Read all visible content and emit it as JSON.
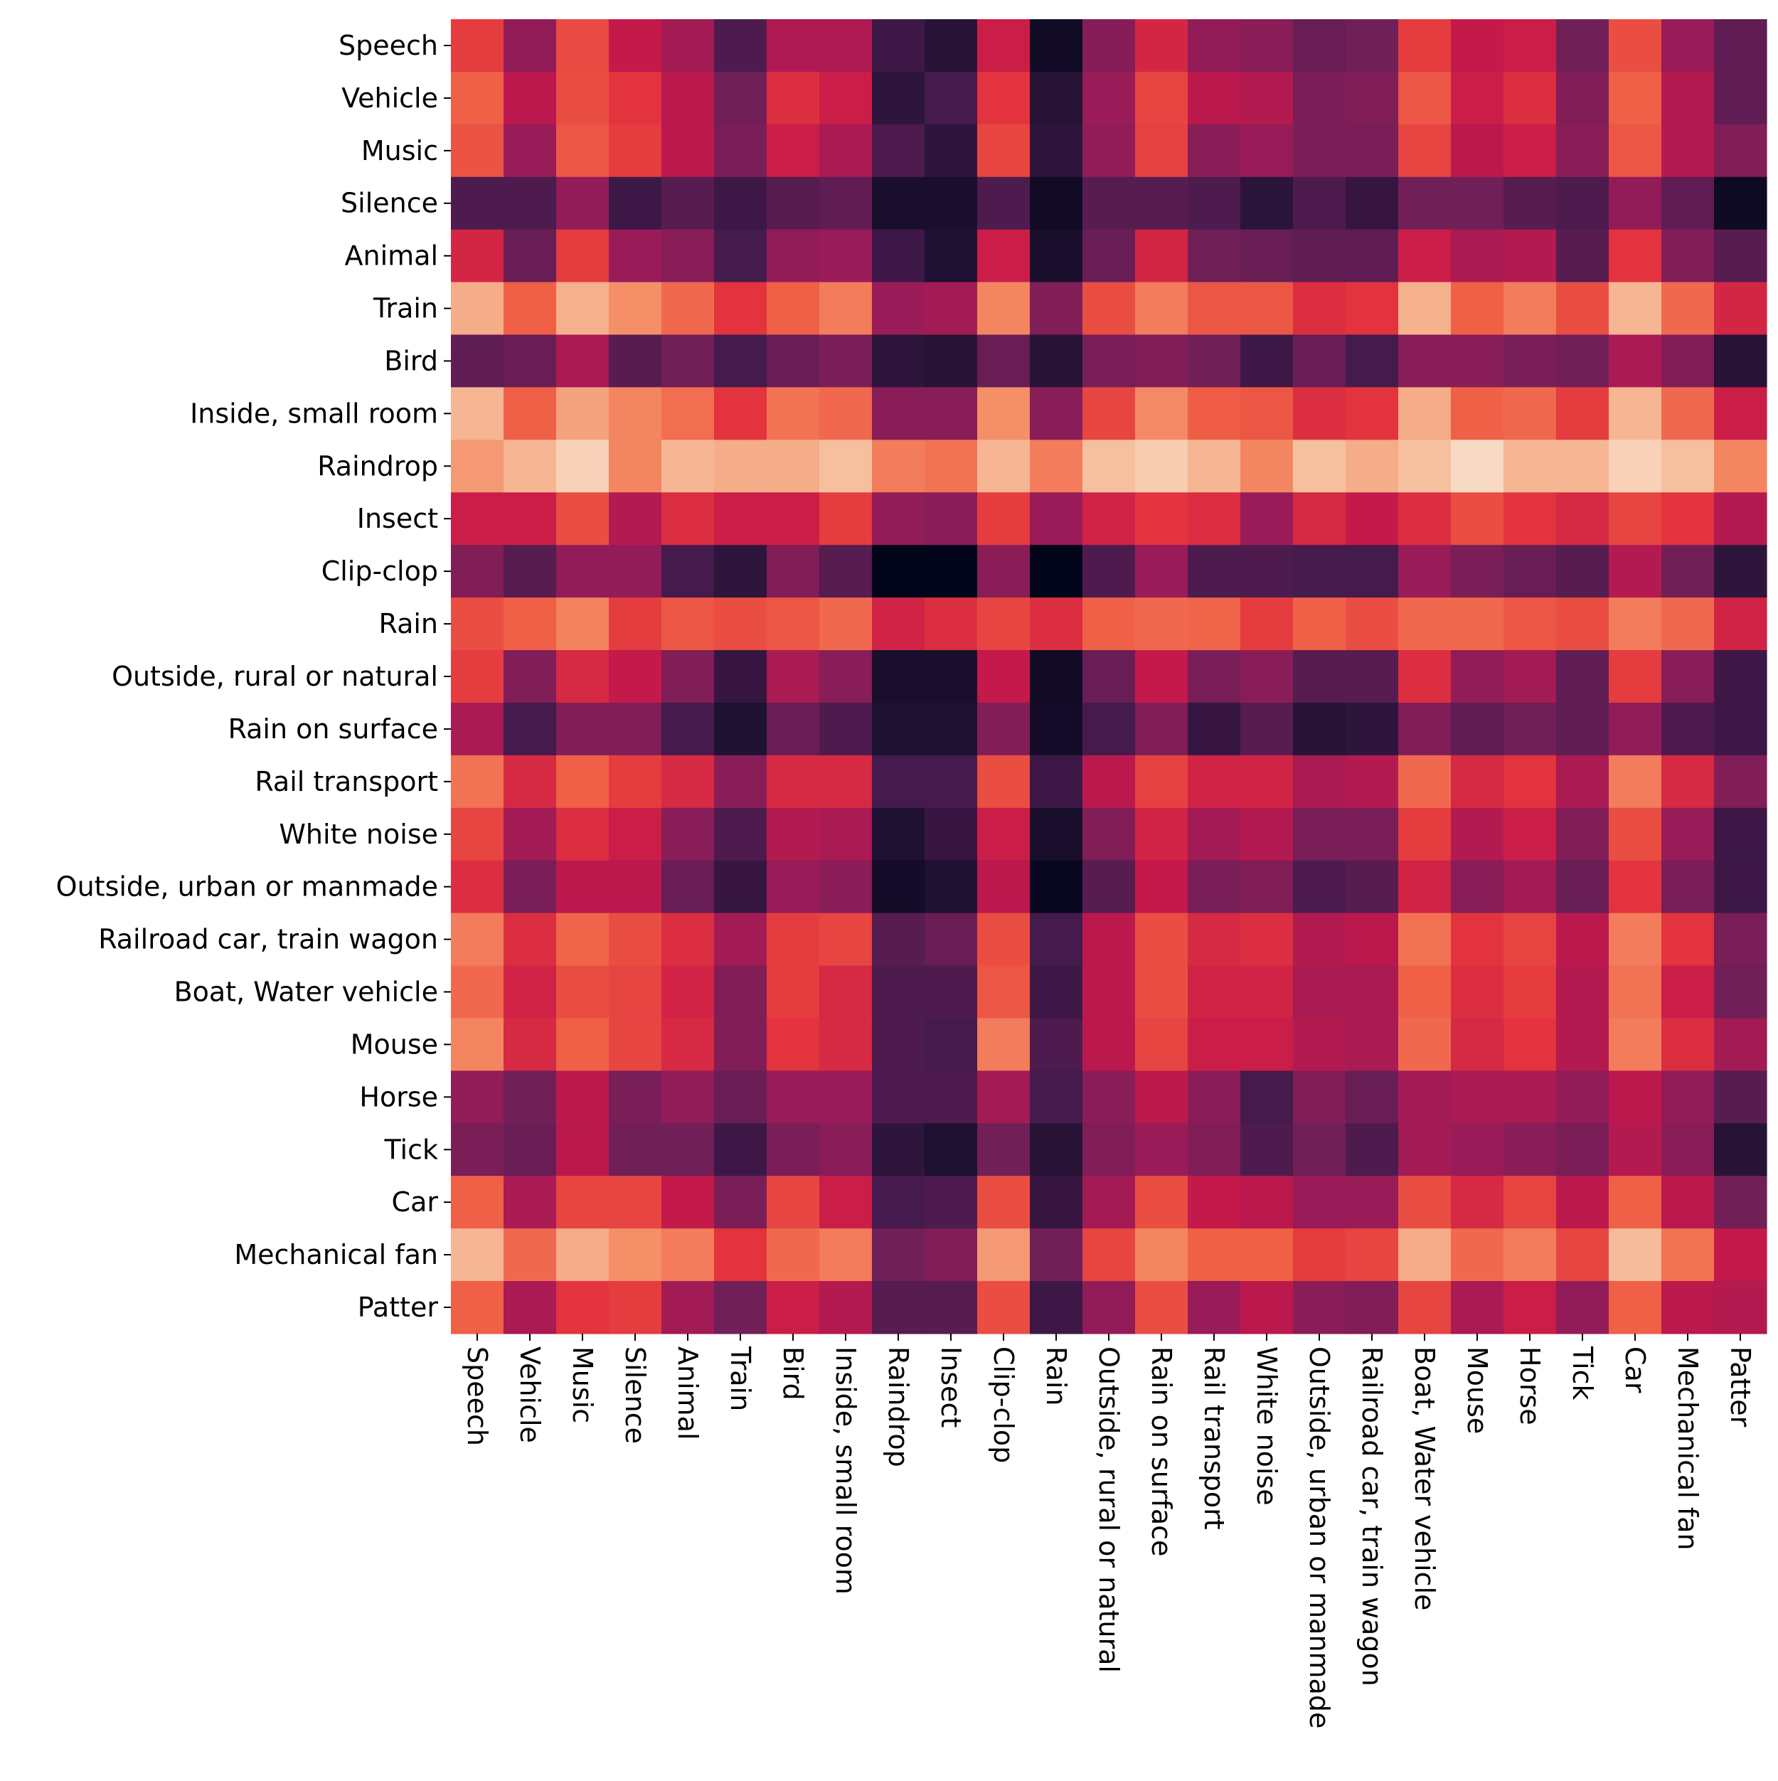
{
  "chart_data": {
    "type": "heatmap",
    "title": "",
    "xlabel": "",
    "ylabel": "",
    "colorbar": false,
    "grid": false,
    "colormap": "rocket",
    "value_range": [
      0,
      1
    ],
    "x_labels": [
      "Speech",
      "Vehicle",
      "Music",
      "Silence",
      "Animal",
      "Train",
      "Bird",
      "Inside, small room",
      "Raindrop",
      "Insect",
      "Clip-clop",
      "Rain",
      "Outside, rural or natural",
      "Rain on surface",
      "Rail transport",
      "White noise",
      "Outside, urban or manmade",
      "Railroad car, train wagon",
      "Boat, Water vehicle",
      "Mouse",
      "Horse",
      "Tick",
      "Car",
      "Mechanical fan",
      "Patter"
    ],
    "y_labels": [
      "Speech",
      "Vehicle",
      "Music",
      "Silence",
      "Animal",
      "Train",
      "Bird",
      "Inside, small room",
      "Raindrop",
      "Insect",
      "Clip-clop",
      "Rain",
      "Outside, rural or natural",
      "Rain on surface",
      "Rail transport",
      "White noise",
      "Outside, urban or manmade",
      "Railroad car, train wagon",
      "Boat, Water vehicle",
      "Mouse",
      "Horse",
      "Tick",
      "Car",
      "Mechanical fan",
      "Patter"
    ],
    "values": [
      [
        0.62,
        0.38,
        0.65,
        0.5,
        0.42,
        0.22,
        0.45,
        0.45,
        0.18,
        0.12,
        0.52,
        0.05,
        0.35,
        0.55,
        0.38,
        0.36,
        0.28,
        0.3,
        0.62,
        0.5,
        0.52,
        0.3,
        0.66,
        0.4,
        0.26
      ],
      [
        0.7,
        0.48,
        0.66,
        0.6,
        0.48,
        0.3,
        0.58,
        0.52,
        0.14,
        0.2,
        0.6,
        0.12,
        0.4,
        0.64,
        0.48,
        0.46,
        0.32,
        0.34,
        0.68,
        0.52,
        0.58,
        0.34,
        0.7,
        0.46,
        0.26
      ],
      [
        0.67,
        0.4,
        0.68,
        0.62,
        0.48,
        0.32,
        0.52,
        0.44,
        0.22,
        0.14,
        0.64,
        0.14,
        0.38,
        0.63,
        0.36,
        0.4,
        0.32,
        0.32,
        0.64,
        0.48,
        0.52,
        0.36,
        0.68,
        0.46,
        0.34
      ],
      [
        0.22,
        0.22,
        0.38,
        0.18,
        0.24,
        0.18,
        0.24,
        0.26,
        0.08,
        0.08,
        0.22,
        0.05,
        0.24,
        0.24,
        0.22,
        0.13,
        0.22,
        0.16,
        0.3,
        0.3,
        0.24,
        0.22,
        0.38,
        0.26,
        0.04
      ],
      [
        0.55,
        0.28,
        0.62,
        0.4,
        0.36,
        0.2,
        0.38,
        0.4,
        0.18,
        0.1,
        0.52,
        0.08,
        0.28,
        0.55,
        0.3,
        0.28,
        0.26,
        0.26,
        0.52,
        0.44,
        0.46,
        0.24,
        0.6,
        0.34,
        0.24
      ],
      [
        0.86,
        0.7,
        0.87,
        0.8,
        0.72,
        0.6,
        0.7,
        0.76,
        0.4,
        0.42,
        0.78,
        0.34,
        0.66,
        0.76,
        0.68,
        0.68,
        0.58,
        0.6,
        0.87,
        0.7,
        0.76,
        0.66,
        0.88,
        0.72,
        0.55
      ],
      [
        0.26,
        0.28,
        0.44,
        0.24,
        0.3,
        0.2,
        0.28,
        0.32,
        0.14,
        0.12,
        0.28,
        0.12,
        0.32,
        0.34,
        0.3,
        0.18,
        0.28,
        0.2,
        0.36,
        0.36,
        0.32,
        0.3,
        0.44,
        0.34,
        0.12
      ],
      [
        0.88,
        0.7,
        0.84,
        0.78,
        0.73,
        0.6,
        0.74,
        0.72,
        0.36,
        0.36,
        0.8,
        0.36,
        0.64,
        0.79,
        0.69,
        0.68,
        0.58,
        0.6,
        0.86,
        0.7,
        0.72,
        0.62,
        0.88,
        0.72,
        0.52
      ],
      [
        0.82,
        0.88,
        0.94,
        0.78,
        0.88,
        0.86,
        0.86,
        0.9,
        0.76,
        0.74,
        0.88,
        0.76,
        0.9,
        0.93,
        0.88,
        0.78,
        0.9,
        0.86,
        0.9,
        0.96,
        0.88,
        0.88,
        0.94,
        0.9,
        0.78
      ],
      [
        0.52,
        0.52,
        0.66,
        0.46,
        0.58,
        0.52,
        0.52,
        0.62,
        0.38,
        0.36,
        0.62,
        0.4,
        0.54,
        0.6,
        0.58,
        0.4,
        0.56,
        0.5,
        0.58,
        0.66,
        0.6,
        0.56,
        0.64,
        0.6,
        0.46
      ],
      [
        0.34,
        0.24,
        0.38,
        0.38,
        0.2,
        0.14,
        0.34,
        0.24,
        0.0,
        0.0,
        0.36,
        0.0,
        0.22,
        0.4,
        0.22,
        0.22,
        0.2,
        0.2,
        0.4,
        0.32,
        0.28,
        0.24,
        0.46,
        0.3,
        0.14
      ],
      [
        0.66,
        0.7,
        0.77,
        0.62,
        0.68,
        0.66,
        0.68,
        0.72,
        0.54,
        0.58,
        0.64,
        0.58,
        0.7,
        0.72,
        0.71,
        0.62,
        0.7,
        0.66,
        0.72,
        0.72,
        0.68,
        0.66,
        0.76,
        0.72,
        0.54
      ],
      [
        0.62,
        0.34,
        0.56,
        0.5,
        0.34,
        0.16,
        0.44,
        0.36,
        0.08,
        0.08,
        0.5,
        0.05,
        0.28,
        0.5,
        0.32,
        0.36,
        0.24,
        0.24,
        0.58,
        0.38,
        0.42,
        0.26,
        0.62,
        0.36,
        0.18
      ],
      [
        0.44,
        0.2,
        0.34,
        0.34,
        0.2,
        0.1,
        0.28,
        0.22,
        0.1,
        0.1,
        0.34,
        0.06,
        0.2,
        0.34,
        0.16,
        0.24,
        0.12,
        0.14,
        0.34,
        0.26,
        0.3,
        0.26,
        0.38,
        0.22,
        0.18
      ],
      [
        0.74,
        0.56,
        0.7,
        0.62,
        0.56,
        0.36,
        0.56,
        0.56,
        0.2,
        0.2,
        0.66,
        0.18,
        0.48,
        0.63,
        0.54,
        0.54,
        0.44,
        0.46,
        0.72,
        0.56,
        0.6,
        0.44,
        0.76,
        0.56,
        0.34
      ],
      [
        0.64,
        0.42,
        0.58,
        0.52,
        0.36,
        0.22,
        0.46,
        0.44,
        0.1,
        0.16,
        0.52,
        0.08,
        0.34,
        0.54,
        0.42,
        0.46,
        0.32,
        0.32,
        0.62,
        0.46,
        0.52,
        0.34,
        0.66,
        0.4,
        0.18
      ],
      [
        0.58,
        0.32,
        0.48,
        0.48,
        0.28,
        0.16,
        0.4,
        0.36,
        0.06,
        0.1,
        0.48,
        0.02,
        0.24,
        0.5,
        0.32,
        0.34,
        0.22,
        0.24,
        0.54,
        0.36,
        0.42,
        0.28,
        0.6,
        0.32,
        0.18
      ],
      [
        0.76,
        0.58,
        0.71,
        0.66,
        0.58,
        0.42,
        0.62,
        0.64,
        0.24,
        0.28,
        0.66,
        0.2,
        0.48,
        0.66,
        0.56,
        0.58,
        0.46,
        0.48,
        0.74,
        0.6,
        0.64,
        0.48,
        0.76,
        0.6,
        0.32
      ],
      [
        0.72,
        0.54,
        0.66,
        0.64,
        0.54,
        0.34,
        0.62,
        0.56,
        0.22,
        0.22,
        0.68,
        0.18,
        0.48,
        0.66,
        0.54,
        0.54,
        0.44,
        0.44,
        0.7,
        0.58,
        0.62,
        0.46,
        0.74,
        0.52,
        0.3
      ],
      [
        0.78,
        0.56,
        0.7,
        0.64,
        0.56,
        0.34,
        0.6,
        0.56,
        0.22,
        0.2,
        0.76,
        0.22,
        0.48,
        0.64,
        0.52,
        0.52,
        0.46,
        0.44,
        0.72,
        0.56,
        0.6,
        0.46,
        0.76,
        0.58,
        0.42
      ],
      [
        0.38,
        0.3,
        0.48,
        0.32,
        0.38,
        0.28,
        0.4,
        0.4,
        0.22,
        0.22,
        0.42,
        0.2,
        0.36,
        0.48,
        0.36,
        0.2,
        0.34,
        0.28,
        0.42,
        0.44,
        0.44,
        0.38,
        0.48,
        0.38,
        0.24
      ],
      [
        0.32,
        0.28,
        0.48,
        0.3,
        0.3,
        0.18,
        0.32,
        0.36,
        0.14,
        0.1,
        0.3,
        0.12,
        0.34,
        0.4,
        0.34,
        0.22,
        0.3,
        0.22,
        0.42,
        0.4,
        0.36,
        0.32,
        0.46,
        0.36,
        0.12
      ],
      [
        0.7,
        0.44,
        0.64,
        0.64,
        0.5,
        0.32,
        0.64,
        0.52,
        0.2,
        0.22,
        0.66,
        0.16,
        0.42,
        0.66,
        0.5,
        0.48,
        0.4,
        0.4,
        0.66,
        0.56,
        0.64,
        0.48,
        0.7,
        0.48,
        0.3
      ],
      [
        0.88,
        0.72,
        0.86,
        0.8,
        0.76,
        0.6,
        0.72,
        0.76,
        0.3,
        0.34,
        0.82,
        0.3,
        0.64,
        0.78,
        0.7,
        0.7,
        0.62,
        0.64,
        0.86,
        0.72,
        0.76,
        0.64,
        0.89,
        0.74,
        0.5
      ],
      [
        0.7,
        0.44,
        0.6,
        0.62,
        0.42,
        0.3,
        0.52,
        0.46,
        0.24,
        0.24,
        0.66,
        0.18,
        0.38,
        0.66,
        0.4,
        0.48,
        0.36,
        0.34,
        0.64,
        0.44,
        0.52,
        0.38,
        0.7,
        0.48,
        0.46
      ]
    ]
  }
}
